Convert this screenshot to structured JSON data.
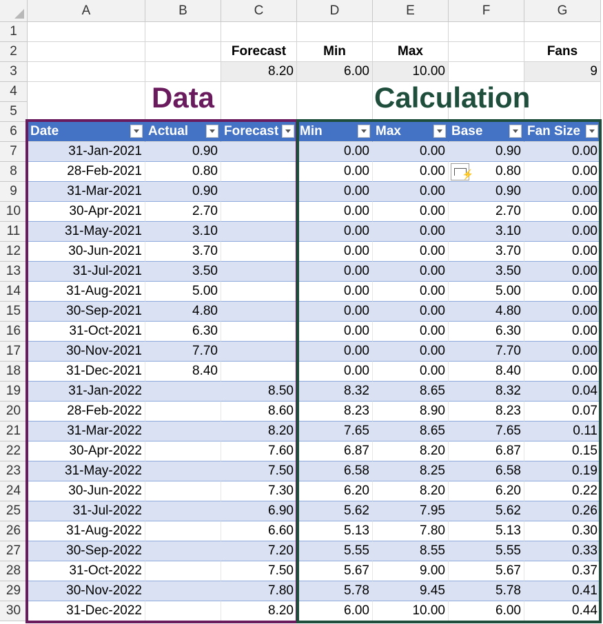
{
  "columns": [
    "A",
    "B",
    "C",
    "D",
    "E",
    "F",
    "G"
  ],
  "rows": [
    "1",
    "2",
    "3",
    "4",
    "5",
    "6",
    "7",
    "8",
    "9",
    "10",
    "11",
    "12",
    "13",
    "14",
    "15",
    "16",
    "17",
    "18",
    "19",
    "20",
    "21",
    "22",
    "23",
    "24",
    "25",
    "26",
    "27",
    "28",
    "29",
    "30"
  ],
  "params": {
    "headers": {
      "forecast": "Forecast",
      "min": "Min",
      "max": "Max",
      "fans": "Fans"
    },
    "values": {
      "forecast": "8.20",
      "min": "6.00",
      "max": "10.00",
      "fans": "9"
    }
  },
  "titles": {
    "data": "Data",
    "calculation": "Calculation"
  },
  "colors": {
    "data_title": "#6a1b5e",
    "calc_title": "#1f4e3d",
    "header_fill": "#4472c4",
    "band_fill": "#d9e1f2",
    "data_box": "#6a1b5e",
    "calc_box": "#1f4e3d"
  },
  "table": {
    "headers": [
      "Date",
      "Actual",
      "Forecast",
      "Min",
      "Max",
      "Base",
      "Fan Size"
    ],
    "rows": [
      [
        "31-Jan-2021",
        "0.90",
        "",
        "0.00",
        "0.00",
        "0.90",
        "0.00"
      ],
      [
        "28-Feb-2021",
        "0.80",
        "",
        "0.00",
        "0.00",
        "0.80",
        "0.00"
      ],
      [
        "31-Mar-2021",
        "0.90",
        "",
        "0.00",
        "0.00",
        "0.90",
        "0.00"
      ],
      [
        "30-Apr-2021",
        "2.70",
        "",
        "0.00",
        "0.00",
        "2.70",
        "0.00"
      ],
      [
        "31-May-2021",
        "3.10",
        "",
        "0.00",
        "0.00",
        "3.10",
        "0.00"
      ],
      [
        "30-Jun-2021",
        "3.70",
        "",
        "0.00",
        "0.00",
        "3.70",
        "0.00"
      ],
      [
        "31-Jul-2021",
        "3.50",
        "",
        "0.00",
        "0.00",
        "3.50",
        "0.00"
      ],
      [
        "31-Aug-2021",
        "5.00",
        "",
        "0.00",
        "0.00",
        "5.00",
        "0.00"
      ],
      [
        "30-Sep-2021",
        "4.80",
        "",
        "0.00",
        "0.00",
        "4.80",
        "0.00"
      ],
      [
        "31-Oct-2021",
        "6.30",
        "",
        "0.00",
        "0.00",
        "6.30",
        "0.00"
      ],
      [
        "30-Nov-2021",
        "7.70",
        "",
        "0.00",
        "0.00",
        "7.70",
        "0.00"
      ],
      [
        "31-Dec-2021",
        "8.40",
        "",
        "0.00",
        "0.00",
        "8.40",
        "0.00"
      ],
      [
        "31-Jan-2022",
        "",
        "8.50",
        "8.32",
        "8.65",
        "8.32",
        "0.04"
      ],
      [
        "28-Feb-2022",
        "",
        "8.60",
        "8.23",
        "8.90",
        "8.23",
        "0.07"
      ],
      [
        "31-Mar-2022",
        "",
        "8.20",
        "7.65",
        "8.65",
        "7.65",
        "0.11"
      ],
      [
        "30-Apr-2022",
        "",
        "7.60",
        "6.87",
        "8.20",
        "6.87",
        "0.15"
      ],
      [
        "31-May-2022",
        "",
        "7.50",
        "6.58",
        "8.25",
        "6.58",
        "0.19"
      ],
      [
        "30-Jun-2022",
        "",
        "7.30",
        "6.20",
        "8.20",
        "6.20",
        "0.22"
      ],
      [
        "31-Jul-2022",
        "",
        "6.90",
        "5.62",
        "7.95",
        "5.62",
        "0.26"
      ],
      [
        "31-Aug-2022",
        "",
        "6.60",
        "5.13",
        "7.80",
        "5.13",
        "0.30"
      ],
      [
        "30-Sep-2022",
        "",
        "7.20",
        "5.55",
        "8.55",
        "5.55",
        "0.33"
      ],
      [
        "31-Oct-2022",
        "",
        "7.50",
        "5.67",
        "9.00",
        "5.67",
        "0.37"
      ],
      [
        "30-Nov-2022",
        "",
        "7.80",
        "5.78",
        "9.45",
        "5.78",
        "0.41"
      ],
      [
        "31-Dec-2022",
        "",
        "8.20",
        "6.00",
        "10.00",
        "6.00",
        "0.44"
      ]
    ]
  },
  "icons": {
    "quick_analysis": "quick-analysis-icon",
    "filter": "dropdown-filter-icon"
  }
}
